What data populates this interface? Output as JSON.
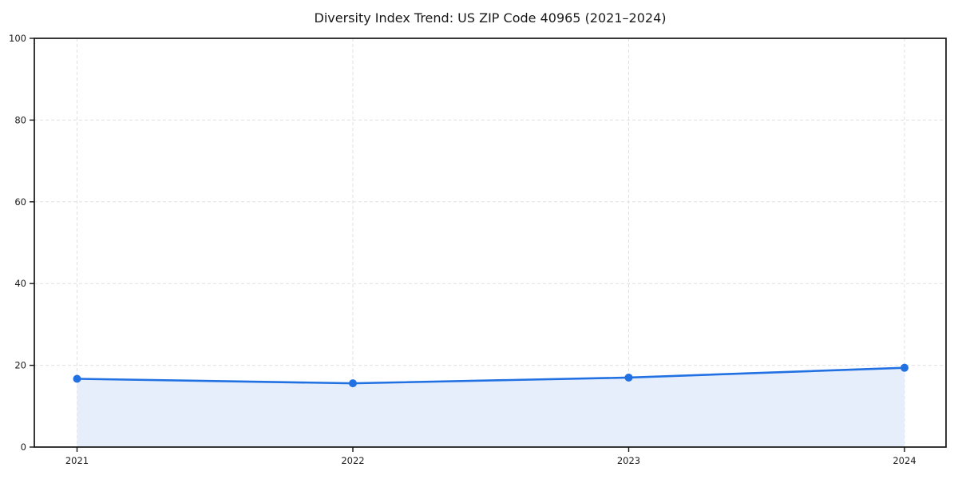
{
  "chart_data": {
    "type": "area",
    "title": "Diversity Index Trend: US ZIP Code 40965 (2021–2024)",
    "categories": [
      "2021",
      "2022",
      "2023",
      "2024"
    ],
    "series": [
      {
        "name": "Diversity Index",
        "values": [
          16.7,
          15.6,
          17.0,
          19.4
        ]
      }
    ],
    "xlabel": "",
    "ylabel": "",
    "ylim": [
      0,
      100
    ],
    "yticks": [
      0,
      20,
      40,
      60,
      80,
      100
    ],
    "grid": true,
    "grid_style": "dashed",
    "legend": "none",
    "marker": "circle",
    "colors": {
      "line": "#2271e3",
      "marker": "#2271e3",
      "fill": "#e7eefb",
      "grid": "#e0e0e0",
      "spine": "#141414",
      "tick": "#141414",
      "text": "#1a1a1a",
      "background": "#ffffff"
    }
  }
}
